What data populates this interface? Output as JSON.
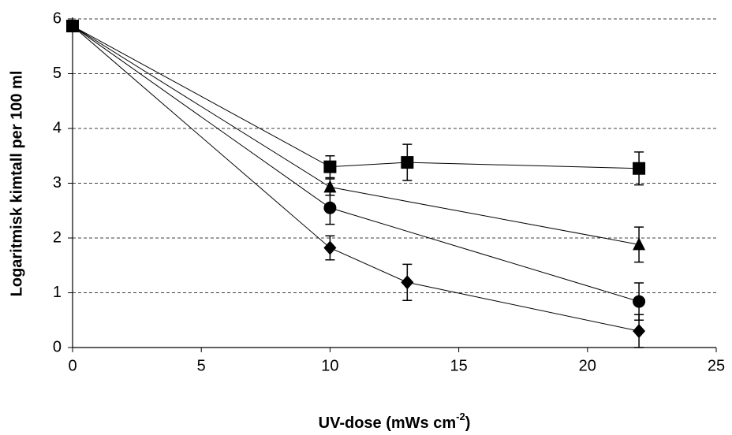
{
  "chart_data": {
    "type": "line",
    "xlabel": {
      "text": "UV-dose (mWs cm",
      "superscript": "-2",
      "suffix": ")"
    },
    "ylabel": "Logaritmisk kimtall per 100 ml",
    "xlim": [
      0,
      25
    ],
    "xticks": [
      0,
      5,
      10,
      15,
      20,
      25
    ],
    "ylim": [
      0,
      6
    ],
    "yticks": [
      0,
      1,
      2,
      3,
      4,
      5,
      6
    ],
    "grid": true,
    "series": [
      {
        "marker": "square",
        "color": "#000000",
        "x": [
          0,
          10,
          13,
          22
        ],
        "values": [
          5.87,
          3.3,
          3.38,
          3.27
        ],
        "errors": [
          null,
          0.2,
          0.33,
          0.3
        ]
      },
      {
        "marker": "triangle",
        "color": "#000000",
        "x": [
          0,
          10,
          22
        ],
        "values": [
          5.87,
          2.93,
          1.88
        ],
        "errors": [
          null,
          0.15,
          0.32
        ]
      },
      {
        "marker": "circle",
        "color": "#000000",
        "x": [
          0,
          10,
          22
        ],
        "values": [
          5.87,
          2.55,
          0.84
        ],
        "errors": [
          null,
          0.3,
          0.34
        ]
      },
      {
        "marker": "diamond",
        "color": "#000000",
        "x": [
          0,
          10,
          13,
          22
        ],
        "values": [
          5.87,
          1.82,
          1.19,
          0.3
        ],
        "errors": [
          null,
          0.22,
          0.33,
          0.3
        ]
      }
    ]
  }
}
